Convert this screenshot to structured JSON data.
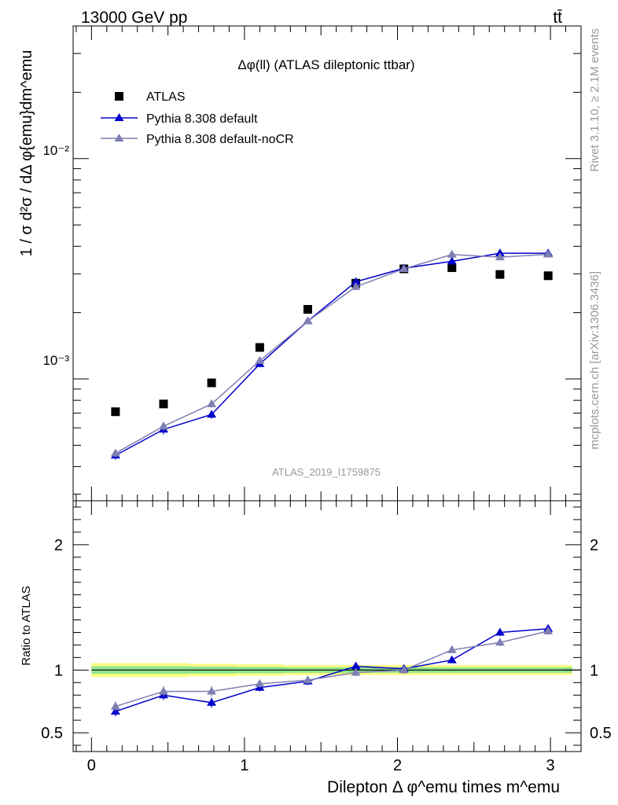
{
  "header": {
    "energy_label": "13000 GeV pp",
    "process_label": "tt̄"
  },
  "side_labels": {
    "rivet": "Rivet 3.1.10, ≥ 2.1M events",
    "mcplots": "mcplots.cern.ch [arXiv:1306.3436]"
  },
  "chart_data": [
    {
      "type": "scatter",
      "title": "Δφ(ll) (ATLAS dileptonic ttbar)",
      "watermark": "ATLAS_2019_I1759875",
      "ylabel": "1 / σ  d²σ / dΔ φ{emu}dm^emu",
      "yscale": "log",
      "xlim": [
        -0.12,
        3.2
      ],
      "ylim": [
        0.00028,
        0.04
      ],
      "y_tick_labels": [
        "10⁻³",
        "10⁻²"
      ],
      "legend_position": "top-left",
      "x": [
        0.157,
        0.471,
        0.785,
        1.1,
        1.414,
        1.728,
        2.042,
        2.356,
        2.67,
        2.985
      ],
      "series": [
        {
          "name": "ATLAS",
          "color": "#000000",
          "marker": "square",
          "values": [
            0.00071,
            0.00077,
            0.00096,
            0.00139,
            0.00207,
            0.00272,
            0.00316,
            0.0032,
            0.00298,
            0.00294
          ]
        },
        {
          "name": "Pythia 8.308 default",
          "color": "#0000cc",
          "marker": "triangle",
          "values": [
            0.00045,
            0.00059,
            0.00069,
            0.00117,
            0.00183,
            0.00276,
            0.00318,
            0.00342,
            0.00372,
            0.00372
          ],
          "errors": [
            2e-05,
            3e-05,
            3e-05,
            4e-05,
            5e-05,
            6e-05,
            6e-05,
            6e-05,
            7e-05,
            7e-05
          ]
        },
        {
          "name": "Pythia 8.308 default-noCR",
          "color": "#7f7fb2",
          "marker": "triangle",
          "values": [
            0.00046,
            0.00061,
            0.00077,
            0.00121,
            0.00183,
            0.00262,
            0.00316,
            0.00367,
            0.00357,
            0.00368
          ],
          "errors": [
            2e-05,
            3e-05,
            3e-05,
            4e-05,
            5e-05,
            6e-05,
            6e-05,
            6e-05,
            7e-05,
            7e-05
          ]
        }
      ]
    },
    {
      "type": "line",
      "ylabel": "Ratio to ATLAS",
      "xlabel": "Dilepton Δ φ^emu times m^emu",
      "xlim": [
        -0.12,
        3.2
      ],
      "ylim": [
        0.35,
        2.35
      ],
      "x_ticks": [
        "0",
        "1",
        "2",
        "3"
      ],
      "y_ticks": [
        "0.5",
        "1",
        "2"
      ],
      "band_edges": [
        0.0,
        0.314,
        0.628,
        0.942,
        1.257,
        1.571,
        1.885,
        2.199,
        2.513,
        2.827,
        3.142
      ],
      "band_yellow_halfwidth": [
        0.055,
        0.055,
        0.05,
        0.045,
        0.04,
        0.04,
        0.04,
        0.04,
        0.04,
        0.04
      ],
      "band_green_halfwidth": [
        0.03,
        0.03,
        0.028,
        0.025,
        0.022,
        0.022,
        0.022,
        0.022,
        0.022,
        0.022
      ],
      "x": [
        0.157,
        0.471,
        0.785,
        1.1,
        1.414,
        1.728,
        2.042,
        2.356,
        2.67,
        2.985
      ],
      "series": [
        {
          "name": "Pythia 8.308 default",
          "color": "#0000cc",
          "values": [
            0.67,
            0.8,
            0.74,
            0.86,
            0.91,
            1.03,
            1.01,
            1.08,
            1.3,
            1.33
          ],
          "errors": [
            0.04,
            0.04,
            0.04,
            0.03,
            0.03,
            0.03,
            0.03,
            0.02,
            0.03,
            0.03
          ]
        },
        {
          "name": "Pythia 8.308 default-noCR",
          "color": "#7f7fb2",
          "values": [
            0.71,
            0.83,
            0.83,
            0.89,
            0.92,
            0.98,
            1.0,
            1.16,
            1.22,
            1.31
          ],
          "errors": [
            0.04,
            0.04,
            0.04,
            0.03,
            0.03,
            0.03,
            0.03,
            0.02,
            0.03,
            0.03
          ]
        }
      ]
    }
  ]
}
